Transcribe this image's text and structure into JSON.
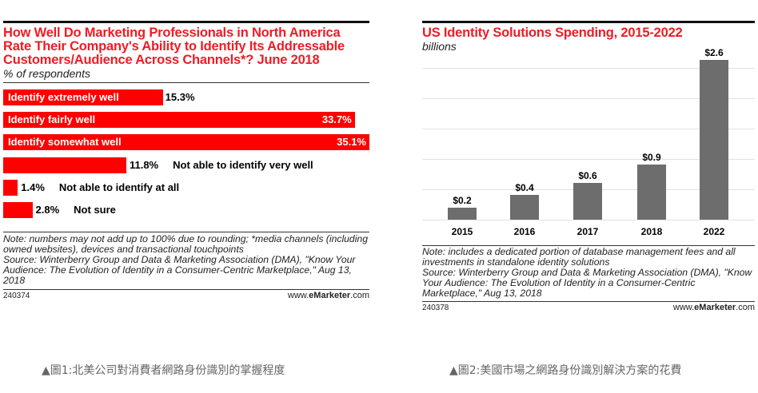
{
  "chart_data": [
    {
      "type": "bar",
      "orientation": "horizontal",
      "title": "How Well Do Marketing Professionals in North America Rate Their Company's Ability to Identify Its Addressable Customers/Audience Across Channels*? June 2018",
      "subtitle": "% of respondents",
      "categories": [
        "Identify extremely well",
        "Identify fairly well",
        "Identify somewhat well",
        "Not able to identify very well",
        "Not able to identify at all",
        "Not sure"
      ],
      "values": [
        15.3,
        33.7,
        35.1,
        11.8,
        1.4,
        2.8
      ],
      "value_labels": [
        "15.3%",
        "33.7%",
        "35.1%",
        "11.8%",
        "1.4%",
        "2.8%"
      ],
      "label_inside": [
        true,
        true,
        true,
        false,
        false,
        false
      ],
      "bar_color": "#ff0000",
      "note": "Note: numbers may not add up to 100% due to rounding; *media channels (including owned websites), devices and transactional touchpoints",
      "source": "Source: Winterberry Group and Data & Marketing Association (DMA), \"Know Your Audience: The Evolution of Identity in a Consumer-Centric Marketplace,\" Aug 13, 2018",
      "chart_id": "240374",
      "brand_prefix": "www.",
      "brand_bold": "eMarketer",
      "brand_suffix": ".com"
    },
    {
      "type": "bar",
      "orientation": "vertical",
      "title": "US Identity Solutions Spending, 2015-2022",
      "subtitle": "billions",
      "categories": [
        "2015",
        "2016",
        "2017",
        "2018",
        "2022"
      ],
      "values": [
        0.2,
        0.4,
        0.6,
        0.9,
        2.6
      ],
      "value_labels": [
        "$0.2",
        "$0.4",
        "$0.6",
        "$0.9",
        "$2.6"
      ],
      "bar_color": "#6d6d6d",
      "grid": true,
      "note": "Note: includes a dedicated portion of database management fees and all investments in standalone identity solutions",
      "source": "Source: Winterberry Group and Data & Marketing Association (DMA), \"Know Your Audience: The Evolution of Identity in a Consumer-Centric Marketplace,\" Aug 13, 2018",
      "chart_id": "240378",
      "brand_prefix": "www.",
      "brand_bold": "eMarketer",
      "brand_suffix": ".com"
    }
  ],
  "captions": {
    "left": "▲圖1:北美公司對消費者網路身份識別的掌握程度",
    "right": "▲圖2:美國市場之網路身份識別解決方案的花費"
  }
}
